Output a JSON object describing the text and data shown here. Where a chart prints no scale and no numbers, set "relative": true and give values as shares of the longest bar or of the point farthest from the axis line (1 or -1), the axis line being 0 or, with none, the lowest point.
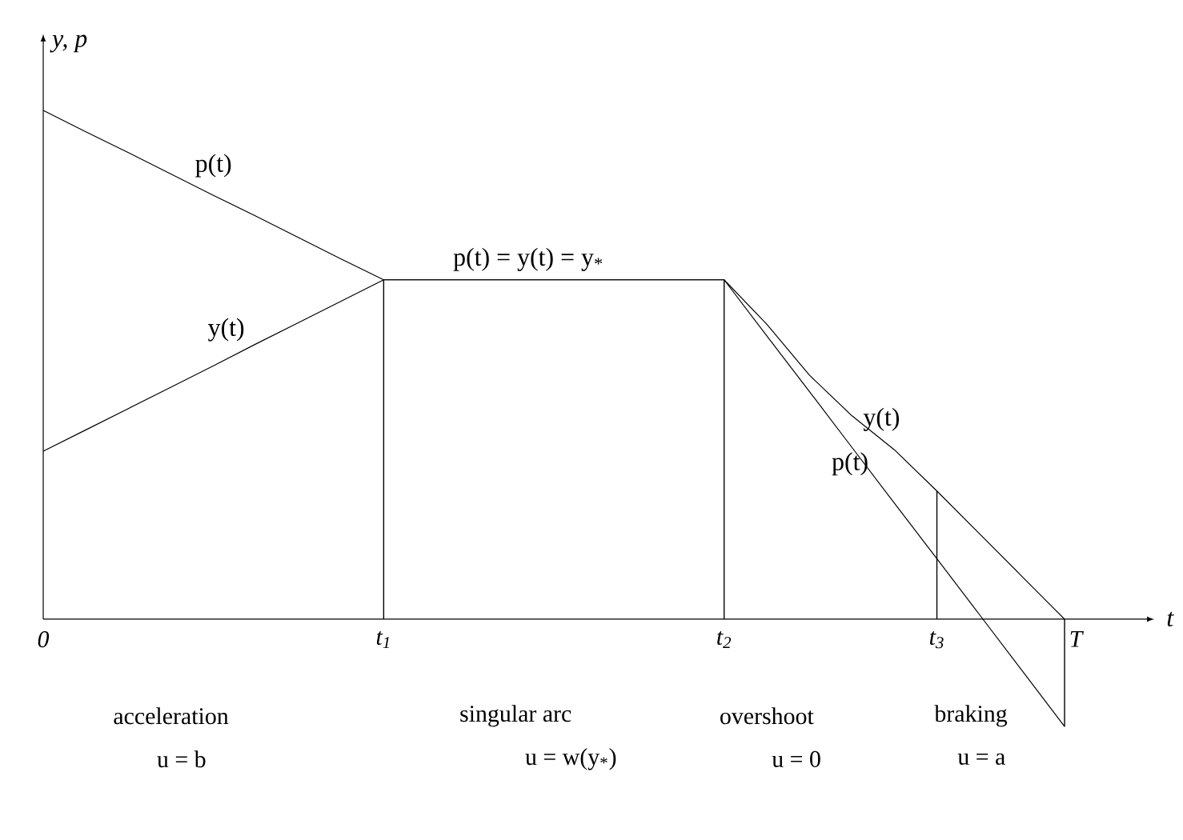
{
  "chart_data": {
    "type": "line",
    "relative": true,
    "xlabel": "t",
    "ylabel": "y, p",
    "tick_labels": "x",
    "categories": [
      "0",
      null,
      null,
      null,
      null,
      null,
      null,
      null,
      "t$_{1}$",
      null,
      null,
      null,
      null,
      null,
      null,
      null,
      "t$_{2}$",
      null,
      null,
      null,
      null,
      "t$_{3}$",
      null,
      null,
      "T"
    ],
    "series": [
      {
        "color": "#000000",
        "values": [
          1,
          0.958,
          0.917,
          0.875,
          0.833,
          0.792,
          0.75,
          0.708,
          0.667,
          0.667,
          0.667,
          0.667,
          0.667,
          0.667,
          0.667,
          0.667,
          0.667,
          0.557,
          0.448,
          0.338,
          0.228,
          0.119,
          0.009,
          -0.101,
          -0.211
        ]
      },
      {
        "color": "#000000",
        "values": [
          0.33,
          0.372,
          0.414,
          0.456,
          0.498,
          0.541,
          0.583,
          0.625,
          0.667,
          0.667,
          0.667,
          0.667,
          0.667,
          0.667,
          0.667,
          0.667,
          0.667,
          0.58,
          0.48,
          0.4,
          0.333,
          0.252,
          0.168,
          0.084,
          0
        ]
      },
      {
        "type": "bar",
        "color": "#000000",
        "values": [
          null,
          null,
          null,
          null,
          null,
          null,
          null,
          null,
          0.667,
          null,
          null,
          null,
          null,
          null,
          null,
          null,
          0.667,
          null,
          null,
          null,
          null,
          0.252,
          null,
          null,
          -0.211
        ]
      }
    ],
    "annotations": [
      {
        "text": "p(t)",
        "y": 0.842
      },
      {
        "text": "y(t)",
        "y": 0.51
      },
      {
        "text": "p(t) = y(t) = y$_{*}$",
        "y": 0.667
      },
      {
        "text": "y(t)",
        "y": 0.34
      },
      "p(t)",
      "acceleration",
      "u = b",
      "singular arc",
      "u = w(y$_{*}$)",
      "overshoot",
      "u = 0",
      "braking",
      "u = a"
    ]
  }
}
